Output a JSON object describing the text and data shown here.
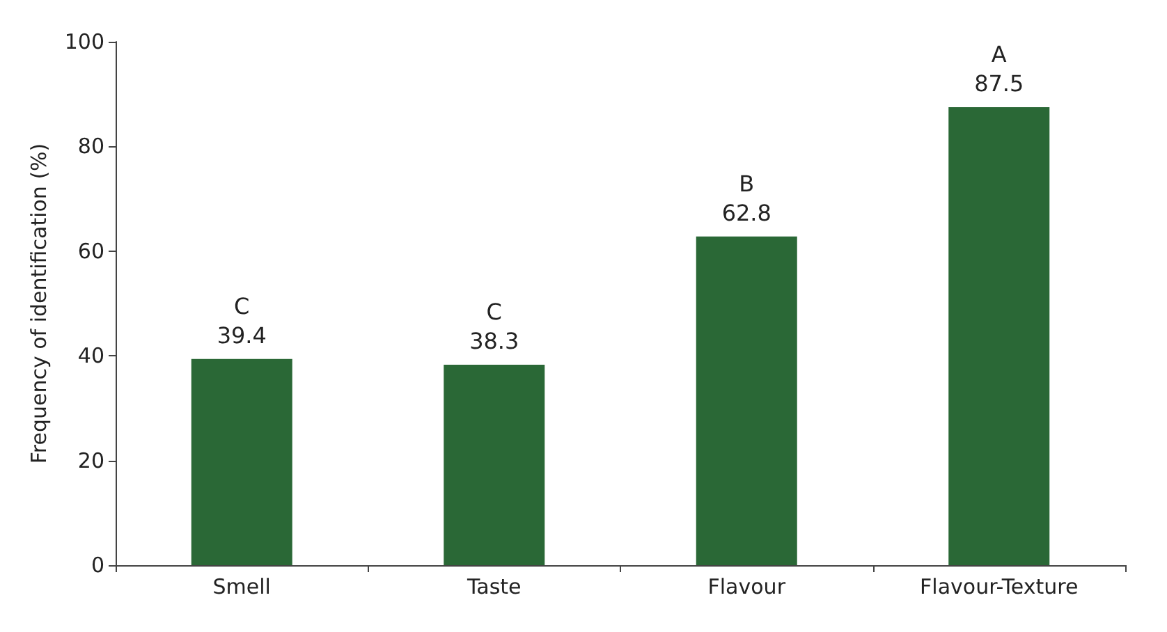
{
  "chart_data": {
    "type": "bar",
    "ylabel": "Frequency of identification (%)",
    "categories": [
      "Smell",
      "Taste",
      "Flavour",
      "Flavour-Texture"
    ],
    "values": [
      39.4,
      38.3,
      62.8,
      87.5
    ],
    "color": "#2a6836",
    "ylim": [
      0,
      100
    ],
    "yticks": [
      0,
      20,
      40,
      60,
      80,
      100
    ],
    "grid": false,
    "data_labels": true,
    "annotations": [
      {
        "text": "C",
        "x": "Smell",
        "y": 39.4
      },
      {
        "text": "C",
        "x": "Taste",
        "y": 38.3
      },
      {
        "text": "B",
        "x": "Flavour",
        "y": 62.8
      },
      {
        "text": "A",
        "x": "Flavour-Texture",
        "y": 87.5
      }
    ]
  }
}
